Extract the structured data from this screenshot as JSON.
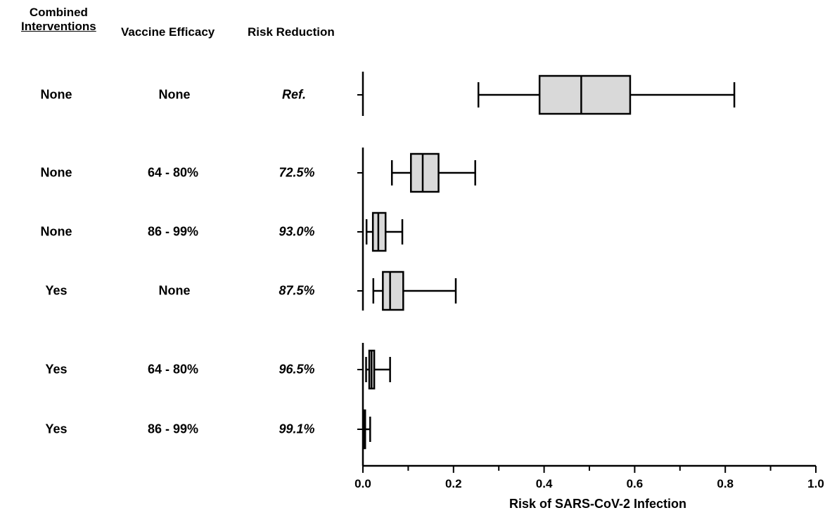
{
  "headers": {
    "combined_line1": "Combined",
    "combined_line2": "Interventions",
    "vaccine": "Vaccine Efficacy",
    "risk": "Risk Reduction"
  },
  "rows": [
    {
      "combined": "None",
      "vaccine": "None",
      "risk": "Ref."
    },
    {
      "combined": "None",
      "vaccine": "64 - 80%",
      "risk": "72.5%"
    },
    {
      "combined": "None",
      "vaccine": "86 - 99%",
      "risk": "93.0%"
    },
    {
      "combined": "Yes",
      "vaccine": "None",
      "risk": "87.5%"
    },
    {
      "combined": "Yes",
      "vaccine": "64 - 80%",
      "risk": "96.5%"
    },
    {
      "combined": "Yes",
      "vaccine": "86 - 99%",
      "risk": "99.1%"
    }
  ],
  "chart_data": {
    "type": "boxplot",
    "orientation": "horizontal",
    "xlabel": "Risk of SARS-CoV-2 Infection",
    "xlim": [
      0.0,
      1.0
    ],
    "xticks": [
      "0.0",
      "0.2",
      "0.4",
      "0.6",
      "0.8",
      "1.0"
    ],
    "box_color": "#d9d9d9",
    "groups": [
      [
        0
      ],
      [
        1,
        2,
        3
      ],
      [
        4,
        5
      ]
    ],
    "boxes": [
      {
        "min": 0.255,
        "q1": 0.39,
        "median": 0.482,
        "q3": 0.59,
        "max": 0.82
      },
      {
        "min": 0.064,
        "q1": 0.106,
        "median": 0.132,
        "q3": 0.167,
        "max": 0.248
      },
      {
        "min": 0.008,
        "q1": 0.022,
        "median": 0.034,
        "q3": 0.05,
        "max": 0.087
      },
      {
        "min": 0.023,
        "q1": 0.044,
        "median": 0.06,
        "q3": 0.089,
        "max": 0.205
      },
      {
        "min": 0.007,
        "q1": 0.014,
        "median": 0.019,
        "q3": 0.025,
        "max": 0.06
      },
      {
        "min": 0.002,
        "q1": 0.003,
        "median": 0.004,
        "q3": 0.005,
        "max": 0.016
      }
    ]
  }
}
